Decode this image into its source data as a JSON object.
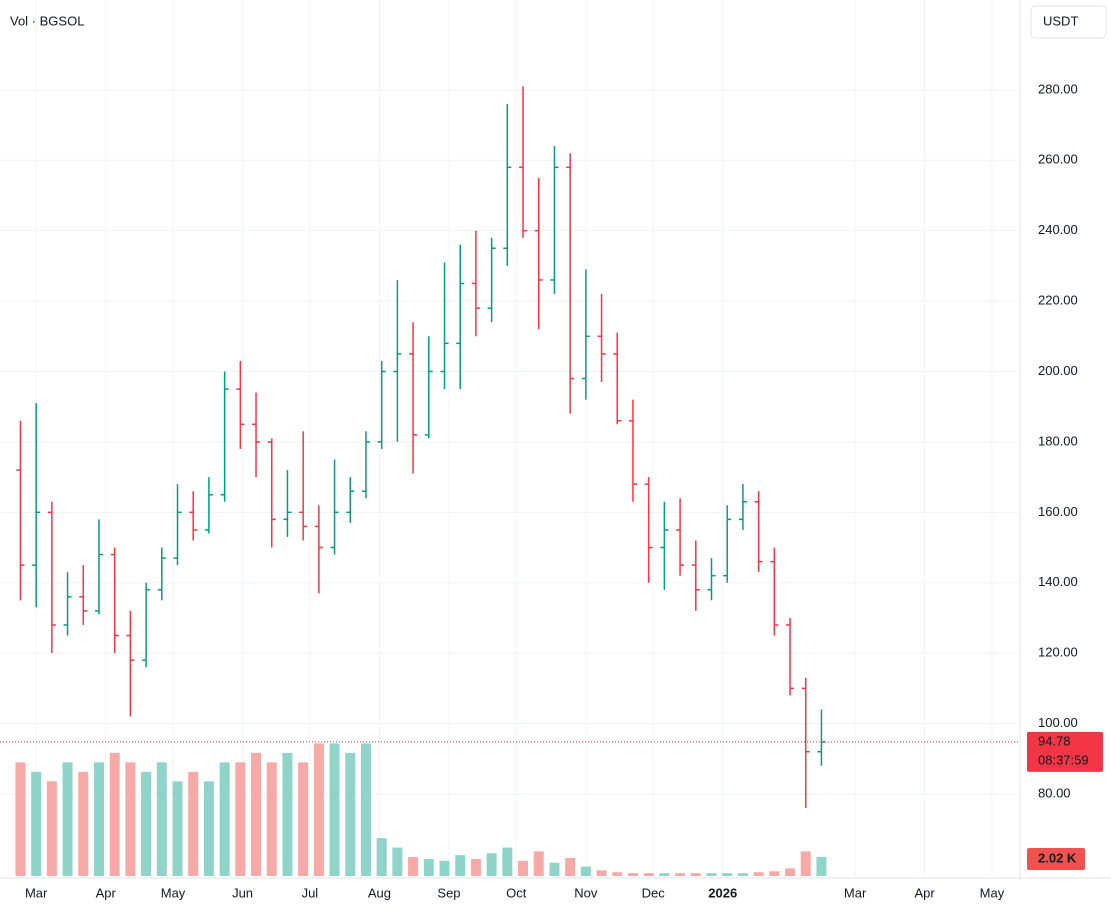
{
  "chart_data": {
    "type": "ohlc",
    "title": "Vol · BGSOL",
    "currency": "USDT",
    "x": [
      0,
      7,
      14,
      21,
      28,
      35,
      42,
      49,
      56,
      63,
      70,
      77,
      84,
      91,
      98,
      105,
      112,
      119,
      126,
      133,
      140,
      147,
      154,
      161,
      168,
      175,
      182,
      189,
      196,
      203,
      210,
      217,
      224,
      231,
      238,
      245,
      252,
      259,
      266,
      273,
      280,
      287,
      294,
      301,
      308,
      315,
      322,
      329,
      336,
      343,
      350,
      357
    ],
    "open": [
      172,
      145,
      160,
      128,
      136,
      132,
      148,
      125,
      118,
      138,
      147,
      160,
      155,
      165,
      195,
      185,
      180,
      158,
      160,
      156,
      150,
      160,
      166,
      180,
      200,
      205,
      182,
      200,
      208,
      225,
      218,
      235,
      258,
      240,
      226,
      258,
      198,
      210,
      205,
      186,
      168,
      150,
      155,
      145,
      138,
      142,
      158,
      163,
      146,
      128,
      110,
      92
    ],
    "high": [
      186,
      191,
      163,
      143,
      145,
      158,
      150,
      132,
      140,
      150,
      168,
      166,
      170,
      200,
      203,
      194,
      181,
      172,
      183,
      162,
      175,
      170,
      183,
      203,
      226,
      214,
      210,
      231,
      236,
      240,
      238,
      276,
      281,
      255,
      264,
      262,
      229,
      222,
      211,
      192,
      170,
      163,
      164,
      152,
      147,
      162,
      168,
      166,
      150,
      130,
      113,
      104
    ],
    "low": [
      135,
      133,
      120,
      125,
      128,
      131,
      120,
      102,
      116,
      135,
      145,
      152,
      154,
      163,
      178,
      170,
      150,
      153,
      152,
      137,
      148,
      157,
      164,
      178,
      180,
      171,
      181,
      195,
      195,
      210,
      214,
      230,
      238,
      212,
      222,
      188,
      192,
      197,
      185,
      163,
      140,
      138,
      142,
      132,
      135,
      140,
      155,
      143,
      125,
      108,
      76,
      88
    ],
    "close": [
      145,
      160,
      128,
      136,
      132,
      148,
      125,
      118,
      138,
      147,
      160,
      155,
      165,
      195,
      185,
      180,
      158,
      160,
      156,
      150,
      160,
      166,
      180,
      200,
      205,
      182,
      200,
      208,
      225,
      218,
      235,
      258,
      240,
      226,
      258,
      198,
      210,
      205,
      186,
      168,
      150,
      155,
      145,
      138,
      142,
      158,
      163,
      146,
      128,
      110,
      92,
      94.78
    ],
    "volume": [
      12,
      11,
      10,
      12,
      11,
      12,
      13,
      12,
      11,
      12,
      10,
      11,
      10,
      12,
      12,
      13,
      12,
      13,
      12,
      14,
      14,
      13,
      14,
      4,
      3,
      2,
      1.8,
      1.6,
      2.2,
      1.8,
      2.4,
      3.0,
      1.6,
      2.6,
      1.4,
      1.9,
      1.0,
      0.6,
      0.4,
      0.3,
      0.3,
      0.3,
      0.3,
      0.3,
      0.3,
      0.3,
      0.3,
      0.4,
      0.5,
      0.8,
      2.6,
      2.02
    ],
    "volume_label": "2.02 K",
    "vlim": [
      0,
      17
    ],
    "xlim": [
      -0.2,
      445.5
    ],
    "xticks": [
      {
        "value": 7,
        "label": "Mar"
      },
      {
        "value": 38,
        "label": "Apr"
      },
      {
        "value": 68,
        "label": "May"
      },
      {
        "value": 99,
        "label": "Jun"
      },
      {
        "value": 129,
        "label": "Jul"
      },
      {
        "value": 160,
        "label": "Aug"
      },
      {
        "value": 191,
        "label": "Sep"
      },
      {
        "value": 221,
        "label": "Oct"
      },
      {
        "value": 252,
        "label": "Nov"
      },
      {
        "value": 282,
        "label": "Dec"
      },
      {
        "value": 313,
        "label": "2026"
      },
      {
        "value": 372,
        "label": "Mar"
      },
      {
        "value": 403,
        "label": "Apr"
      },
      {
        "value": 433,
        "label": "May"
      }
    ],
    "ylim": [
      56.7,
      297.0
    ],
    "yticks": [
      {
        "value": 80,
        "label": "80.00"
      },
      {
        "value": 100,
        "label": "100.00"
      },
      {
        "value": 120,
        "label": "120.00"
      },
      {
        "value": 140,
        "label": "140.00"
      },
      {
        "value": 160,
        "label": "160.00"
      },
      {
        "value": 180,
        "label": "180.00"
      },
      {
        "value": 200,
        "label": "200.00"
      },
      {
        "value": 220,
        "label": "220.00"
      },
      {
        "value": 240,
        "label": "240.00"
      },
      {
        "value": 260,
        "label": "260.00"
      },
      {
        "value": 280,
        "label": "280.00"
      }
    ],
    "last_price": 94.78,
    "countdown": "08:37:59",
    "up_color": "#089981",
    "down_color": "#f23645",
    "up_volume_color": "#8fd4c9",
    "down_volume_color": "#f7a9a7",
    "grid": true
  }
}
